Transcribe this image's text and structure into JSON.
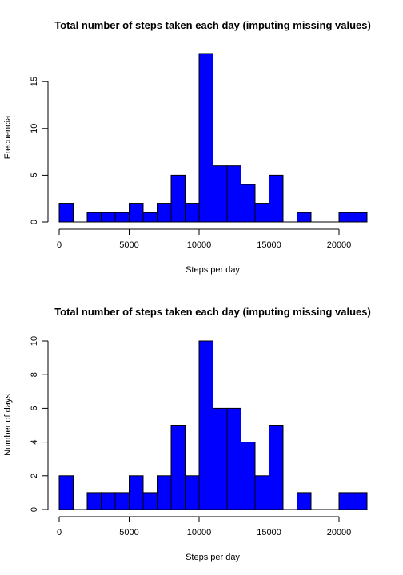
{
  "chart_data": [
    {
      "type": "bar",
      "title": "Total number of steps taken each day (imputing missing values)",
      "xlabel": "Steps per day",
      "ylabel": "Frecuencia",
      "bin_width": 1000,
      "x_start": 0,
      "values": [
        2,
        0,
        1,
        1,
        1,
        2,
        1,
        2,
        5,
        2,
        18,
        6,
        6,
        4,
        2,
        5,
        0,
        1,
        0,
        0,
        1,
        1
      ],
      "xlim": [
        0,
        22000
      ],
      "ylim": [
        0,
        18
      ],
      "x_ticks": [
        0,
        5000,
        10000,
        15000,
        20000
      ],
      "y_ticks": [
        0,
        5,
        10,
        15
      ],
      "bar_color": "#0000ff",
      "grid": false
    },
    {
      "type": "bar",
      "title": "Total number of steps taken each day (imputing missing values)",
      "xlabel": "Steps per day",
      "ylabel": "Number of days",
      "bin_width": 1000,
      "x_start": 0,
      "values": [
        2,
        0,
        1,
        1,
        1,
        2,
        1,
        2,
        5,
        2,
        10,
        6,
        6,
        4,
        2,
        5,
        0,
        1,
        0,
        0,
        1,
        1
      ],
      "xlim": [
        0,
        22000
      ],
      "ylim": [
        0,
        10
      ],
      "x_ticks": [
        0,
        5000,
        10000,
        15000,
        20000
      ],
      "y_ticks": [
        0,
        2,
        4,
        6,
        8,
        10
      ],
      "bar_color": "#0000ff",
      "grid": false
    }
  ]
}
